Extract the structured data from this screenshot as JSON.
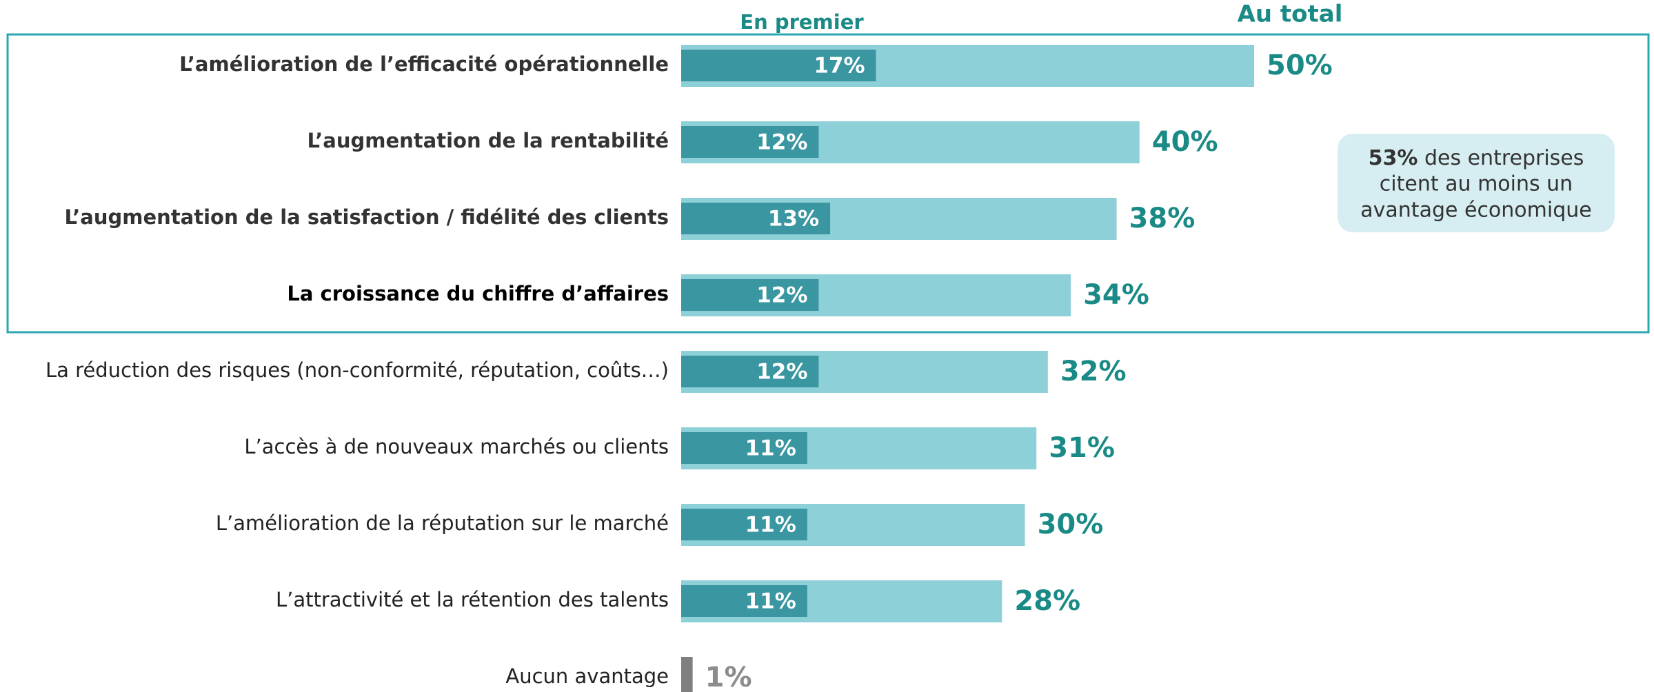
{
  "chart_data": {
    "type": "bar",
    "orientation": "horizontal",
    "categories": [
      "L’amélioration de l’efficacité opérationnelle",
      "L’augmentation de la rentabilité",
      "L’augmentation de la satisfaction / fidélité des clients",
      "La croissance du chiffre d’affaires",
      "La réduction des risques (non-conformité, réputation, coûts…)",
      "L’accès à de nouveaux marchés ou clients",
      "L’amélioration de la réputation sur le marché",
      "L’attractivité et la rétention des talents",
      "Aucun avantage"
    ],
    "series": [
      {
        "name": "En premier",
        "color": "#3a96a0",
        "values": [
          17,
          12,
          13,
          12,
          12,
          11,
          11,
          11,
          null
        ],
        "value_labels": [
          "17%",
          "12%",
          "13%",
          "12%",
          "12%",
          "11%",
          "11%",
          "11%",
          null
        ]
      },
      {
        "name": "Au total",
        "color": "#8ed0d8",
        "colors": [
          "#8ed0d8",
          "#8ed0d8",
          "#8ed0d8",
          "#8ed0d8",
          "#8ed0d8",
          "#8ed0d8",
          "#8ed0d8",
          "#8ed0d8",
          "#7f7f7f"
        ],
        "values": [
          50,
          40,
          38,
          34,
          32,
          31,
          30,
          28,
          1
        ],
        "value_labels": [
          "50%",
          "40%",
          "38%",
          "34%",
          "32%",
          "31%",
          "30%",
          "28%",
          "1%"
        ],
        "value_label_colors": [
          "#1a8a86",
          "#1a8a86",
          "#1a8a86",
          "#1a8a86",
          "#1a8a86",
          "#1a8a86",
          "#1a8a86",
          "#1a8a86",
          "#8c8c8c"
        ]
      }
    ],
    "annotation": {
      "bold": "53%",
      "lines": [
        "des entreprises",
        "citent au moins un",
        "avantage économique"
      ]
    }
  }
}
